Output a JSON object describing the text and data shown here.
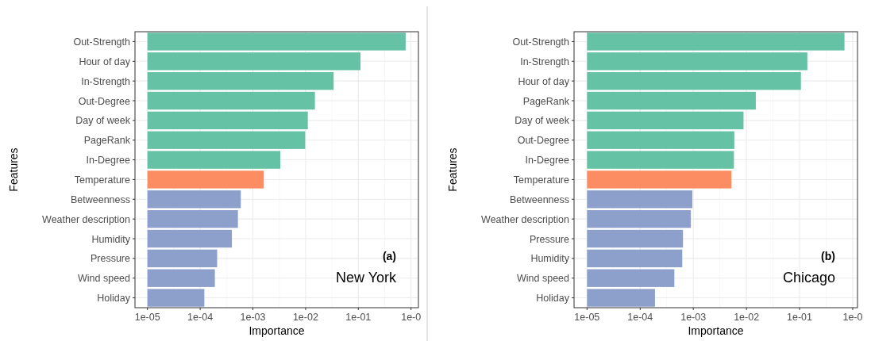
{
  "chart_data": [
    {
      "type": "bar",
      "orientation": "horizontal",
      "log": "x",
      "grid": true,
      "xlabel": "Importance",
      "ylabel": "Features",
      "categories": [
        "Out-Strength",
        "Hour of day",
        "In-Strength",
        "Out-Degree",
        "Day of week",
        "PageRank",
        "In-Degree",
        "Temperature",
        "Betweenness",
        "Weather description",
        "Humidity",
        "Pressure",
        "Wind speed",
        "Holiday"
      ],
      "values": [
        0.79,
        0.11,
        0.034,
        0.015,
        0.011,
        0.0098,
        0.0033,
        0.0016,
        0.00058,
        0.00051,
        0.00039,
        0.0002,
        0.00018,
        0.00011
      ],
      "base": [
        1e-05,
        1e-05,
        1e-05,
        1e-05,
        1e-05,
        1e-05,
        1e-05,
        1e-05,
        1e-05,
        1e-05,
        1e-05,
        1e-05,
        1e-05,
        1e-05
      ],
      "colors": [
        "#66c2a5",
        "#66c2a5",
        "#66c2a5",
        "#66c2a5",
        "#66c2a5",
        "#66c2a5",
        "#66c2a5",
        "#fc8d62",
        "#8da0cb",
        "#8da0cb",
        "#8da0cb",
        "#8da0cb",
        "#8da0cb",
        "#8da0cb"
      ],
      "xlim": [
        5.8e-06,
        1.38
      ],
      "xticks": [
        {
          "value": 1e-05,
          "label": "1e-05"
        },
        {
          "value": 0.0001,
          "label": "1e-04"
        },
        {
          "value": 0.001,
          "label": "1e-03"
        },
        {
          "value": 0.01,
          "label": "1e-02"
        },
        {
          "value": 0.1,
          "label": "1e-01"
        },
        {
          "value": 1,
          "label": "1e-0"
        }
      ],
      "annotations": [
        "(a)",
        "New York"
      ]
    },
    {
      "type": "bar",
      "orientation": "horizontal",
      "log": "x",
      "grid": true,
      "xlabel": "Importance",
      "ylabel": "Features",
      "categories": [
        "Out-Strength",
        "In-Strength",
        "Hour of day",
        "PageRank",
        "Day of week",
        "Out-Degree",
        "In-Degree",
        "Temperature",
        "Betweenness",
        "Weather description",
        "Pressure",
        "Humidity",
        "Wind speed",
        "Holiday"
      ],
      "values": [
        0.7,
        0.14,
        0.106,
        0.015,
        0.0088,
        0.0059,
        0.0058,
        0.0052,
        0.00095,
        0.00089,
        0.00063,
        0.00061,
        0.00043,
        0.00018
      ],
      "base": [
        1e-05,
        1e-05,
        1e-05,
        1e-05,
        1e-05,
        1e-05,
        1e-05,
        1e-05,
        1e-05,
        1e-05,
        1e-05,
        1e-05,
        1e-05,
        1e-05
      ],
      "colors": [
        "#66c2a5",
        "#66c2a5",
        "#66c2a5",
        "#66c2a5",
        "#66c2a5",
        "#66c2a5",
        "#66c2a5",
        "#fc8d62",
        "#8da0cb",
        "#8da0cb",
        "#8da0cb",
        "#8da0cb",
        "#8da0cb",
        "#8da0cb"
      ],
      "xlim": [
        5.7e-06,
        1.23
      ],
      "xticks": [
        {
          "value": 1e-05,
          "label": "1e-05"
        },
        {
          "value": 0.0001,
          "label": "1e-04"
        },
        {
          "value": 0.001,
          "label": "1e-03"
        },
        {
          "value": 0.01,
          "label": "1e-02"
        },
        {
          "value": 0.1,
          "label": "1e-01"
        },
        {
          "value": 1,
          "label": "1e-0"
        }
      ],
      "annotations": [
        "(b)",
        "Chicago"
      ]
    }
  ]
}
